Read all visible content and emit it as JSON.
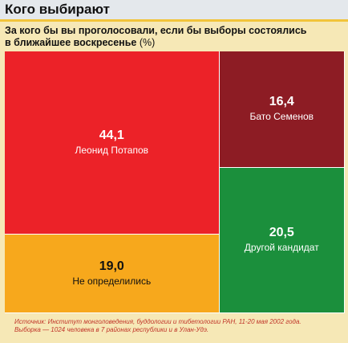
{
  "header": {
    "title": "Кого выбирают"
  },
  "subtitle": {
    "line1": "За кого бы вы проголосовали, если бы выборы состоялись",
    "line2": "в ближайшее воскресенье",
    "unit": "(%)"
  },
  "chart_data": {
    "type": "treemap",
    "title": "За кого бы вы проголосовали, если бы выборы состоялись в ближайшее воскресенье",
    "unit": "%",
    "items": [
      {
        "label": "Леонид Потапов",
        "value": 44.1,
        "value_text": "44,1",
        "color": "#ec2228",
        "text_color": "#ffffff"
      },
      {
        "label": "Бато Семенов",
        "value": 16.4,
        "value_text": "16,4",
        "color": "#8d1c24",
        "text_color": "#ffffff"
      },
      {
        "label": "Другой кандидат",
        "value": 20.5,
        "value_text": "20,5",
        "color": "#1b8f3c",
        "text_color": "#ffffff"
      },
      {
        "label": "Не определились",
        "value": 19.0,
        "value_text": "19,0",
        "color": "#f7a81c",
        "text_color": "#111111"
      }
    ]
  },
  "source": {
    "line1": "Источник: Институт монголоведения, буддологии и тибетологии РАН, 11-20 мая 2002 года.",
    "line2": "Выборка — 1024 человека в 7 районах республики и в Улан-Удэ."
  }
}
